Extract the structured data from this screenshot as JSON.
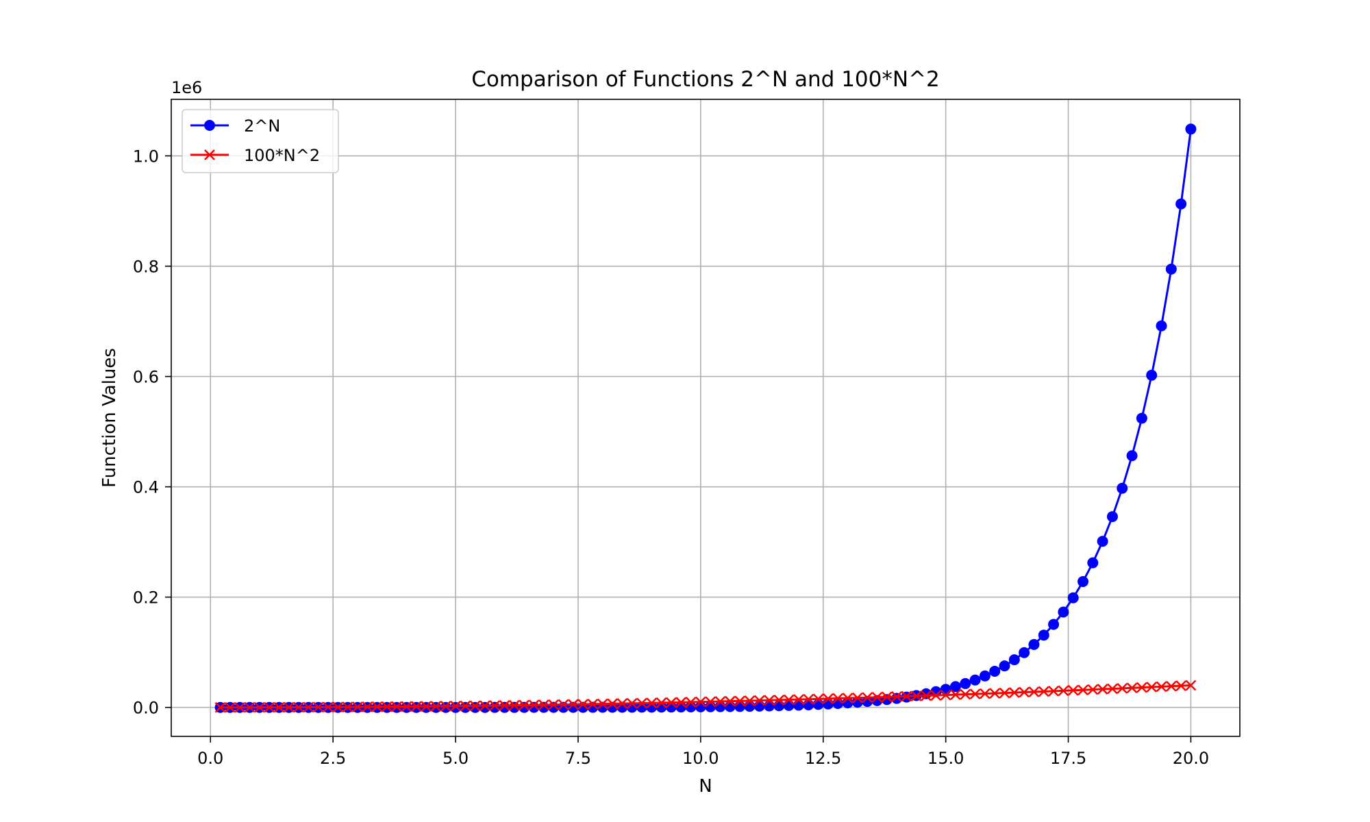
{
  "chart_data": {
    "type": "line",
    "title": "Comparison of Functions 2^N and 100*N^2",
    "xlabel": "N",
    "ylabel": "Function Values",
    "y_offset_label": "1e6",
    "xlim": [
      -0.8,
      21.0
    ],
    "ylim": [
      -0.0525,
      1.1025
    ],
    "y_scale_factor": 1000000,
    "x_ticks": [
      0.0,
      2.5,
      5.0,
      7.5,
      10.0,
      12.5,
      15.0,
      17.5,
      20.0
    ],
    "x_tick_labels": [
      "0.0",
      "2.5",
      "5.0",
      "7.5",
      "10.0",
      "12.5",
      "15.0",
      "17.5",
      "20.0"
    ],
    "y_ticks": [
      0.0,
      0.2,
      0.4,
      0.6,
      0.8,
      1.0
    ],
    "y_tick_labels": [
      "0.0",
      "0.2",
      "0.4",
      "0.6",
      "0.8",
      "1.0"
    ],
    "grid": true,
    "legend_position": "top-left",
    "x": {
      "start": 0.2,
      "stop": 20.0,
      "count": 100
    },
    "series": [
      {
        "name": "2^N",
        "formula": "2^N",
        "color": "#0000ff",
        "marker": "circle"
      },
      {
        "name": "100*N^2",
        "formula": "100*N^2",
        "color": "#ff0000",
        "marker": "x"
      }
    ]
  }
}
